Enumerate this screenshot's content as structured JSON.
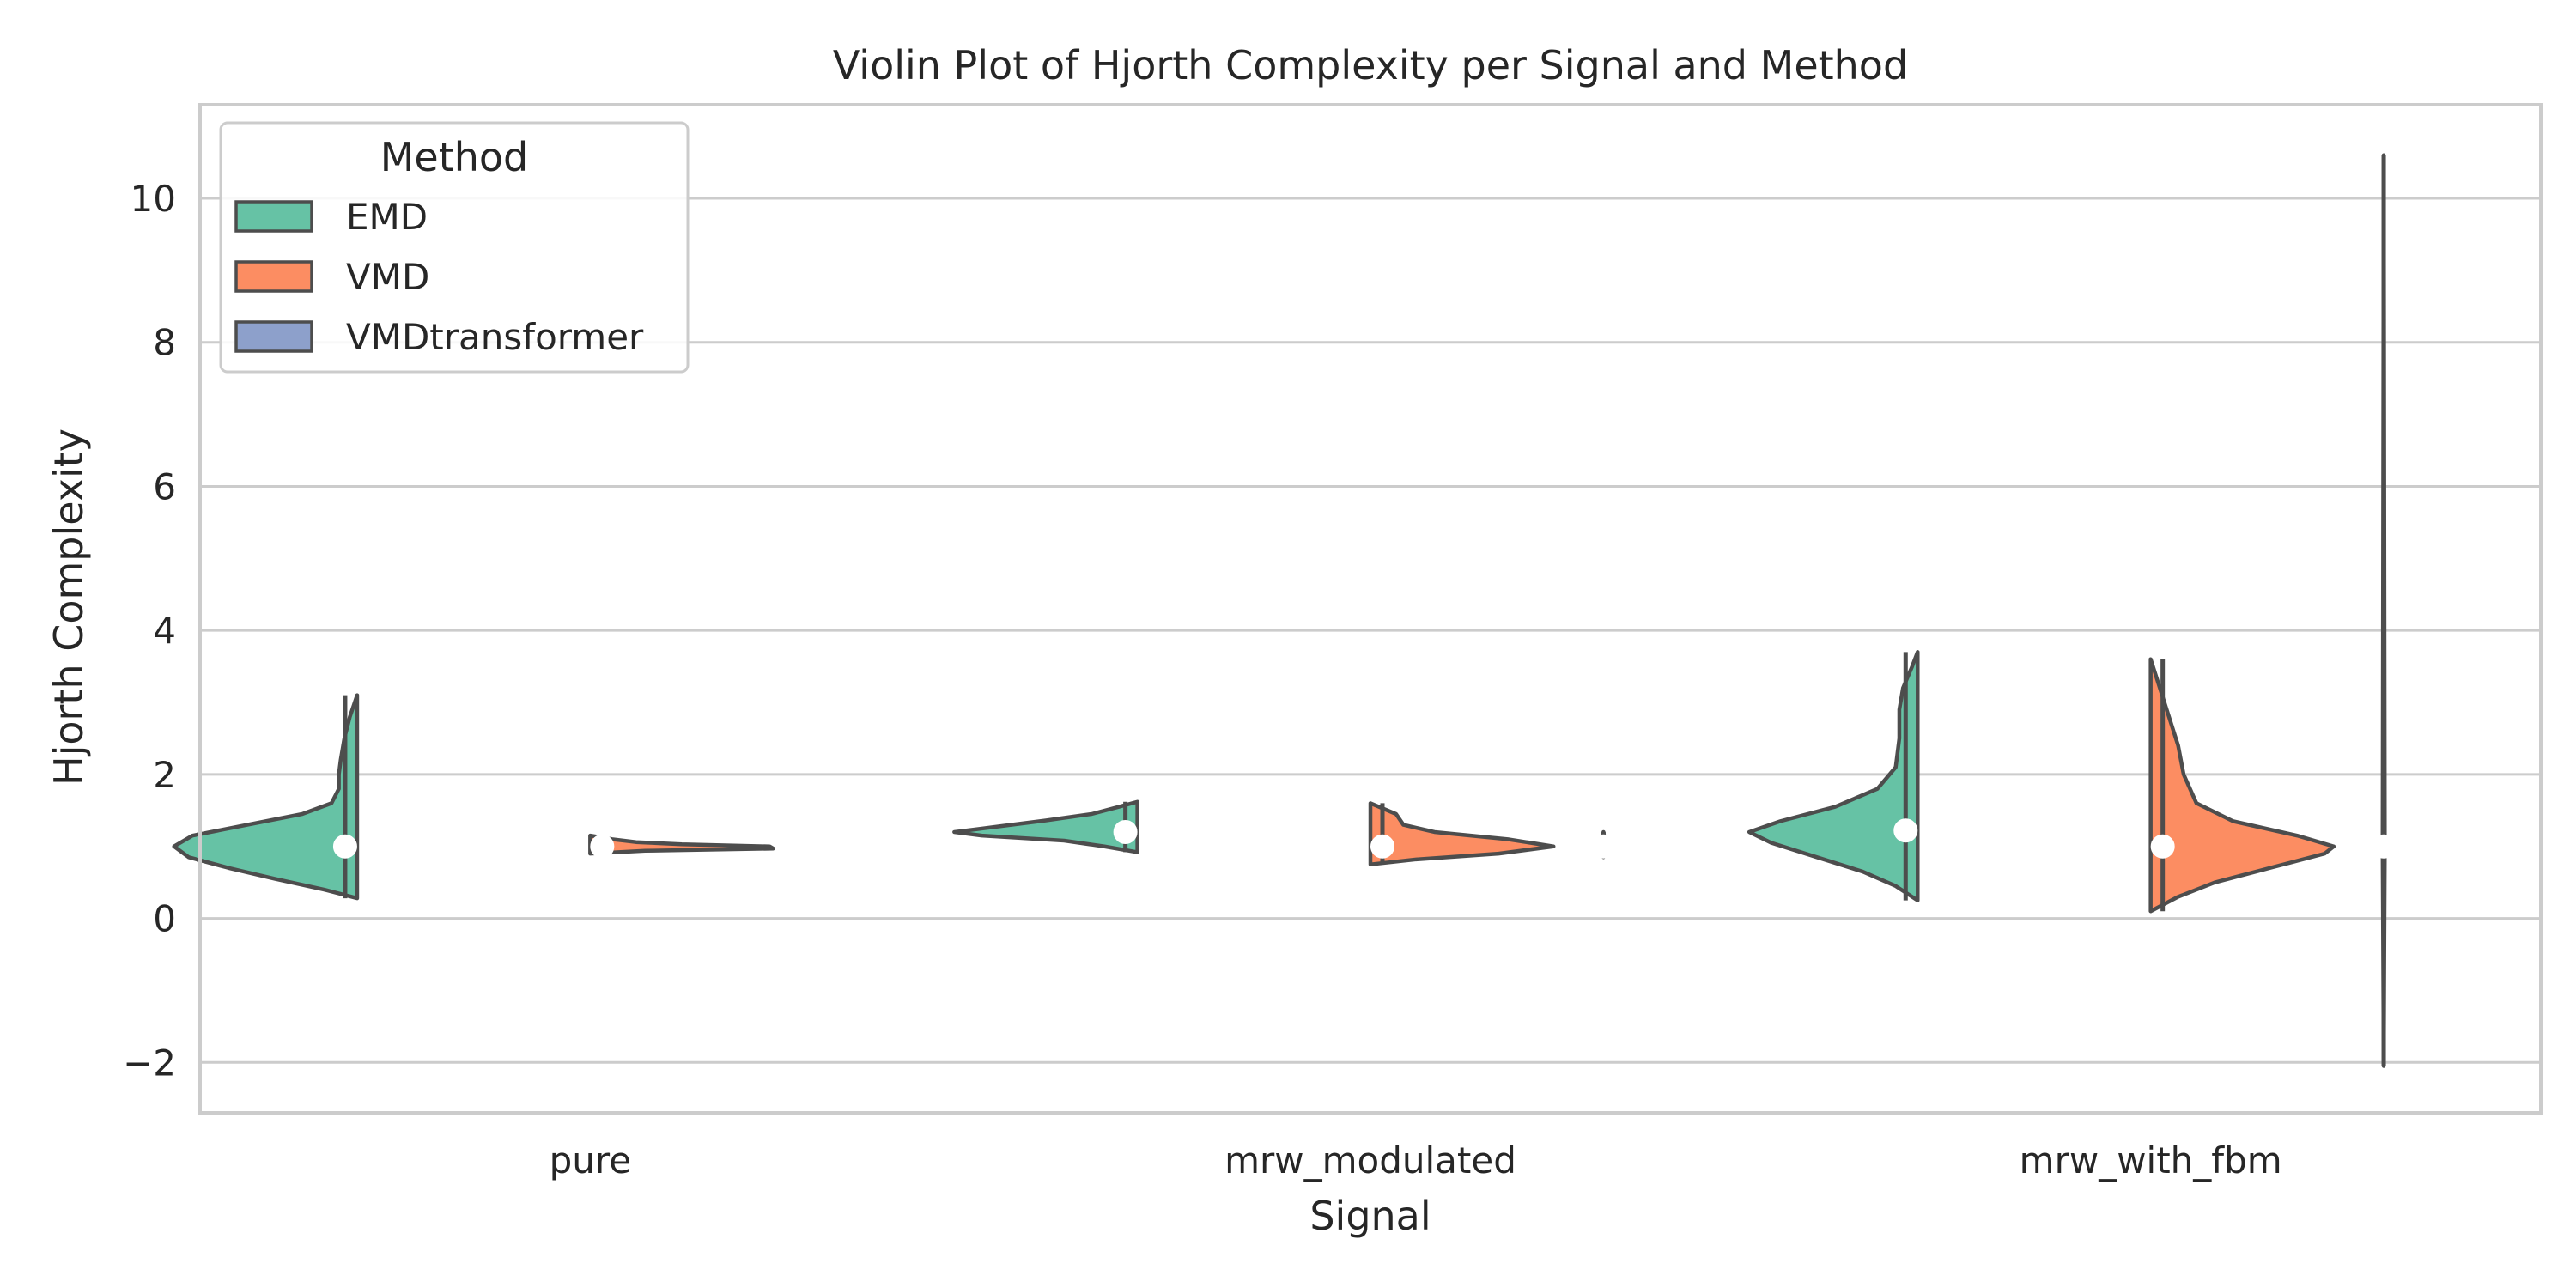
{
  "chart_data": {
    "type": "violin",
    "title": "Violin Plot of Hjorth Complexity per Signal and Method",
    "xlabel": "Signal",
    "ylabel": "Hjorth Complexity",
    "categories": [
      "pure",
      "mrw_modulated",
      "mrw_with_fbm"
    ],
    "ylim": [
      -2.7,
      11.3
    ],
    "yticks": [
      -2,
      0,
      2,
      4,
      6,
      8,
      10
    ],
    "grid": true,
    "legend": {
      "title": "Method",
      "placement": "top-left",
      "entries": [
        {
          "name": "EMD",
          "color": "#66c2a5"
        },
        {
          "name": "VMD",
          "color": "#fc8d62"
        },
        {
          "name": "VMDtransformer",
          "color": "#8da0cb"
        }
      ]
    },
    "series": [
      {
        "name": "EMD",
        "color": "#66c2a5",
        "side": "left",
        "violins": [
          {
            "category": "pure",
            "min": 0.28,
            "max": 3.1,
            "q1": 0.95,
            "q3": 1.08,
            "median": 1.0,
            "density": [
              [
                0.28,
                0.0
              ],
              [
                0.4,
                0.18
              ],
              [
                0.55,
                0.45
              ],
              [
                0.7,
                0.7
              ],
              [
                0.85,
                0.92
              ],
              [
                1.0,
                1.0
              ],
              [
                1.15,
                0.9
              ],
              [
                1.3,
                0.6
              ],
              [
                1.45,
                0.3
              ],
              [
                1.6,
                0.14
              ],
              [
                1.8,
                0.1
              ],
              [
                2.0,
                0.1
              ],
              [
                2.2,
                0.09
              ],
              [
                2.5,
                0.07
              ],
              [
                2.8,
                0.04
              ],
              [
                3.1,
                0.0
              ]
            ]
          },
          {
            "category": "mrw_modulated",
            "min": 0.92,
            "max": 1.62,
            "q1": 1.1,
            "q3": 1.3,
            "median": 1.2,
            "density": [
              [
                0.92,
                0.0
              ],
              [
                1.0,
                0.18
              ],
              [
                1.08,
                0.4
              ],
              [
                1.15,
                0.85
              ],
              [
                1.2,
                1.0
              ],
              [
                1.28,
                0.75
              ],
              [
                1.36,
                0.5
              ],
              [
                1.45,
                0.25
              ],
              [
                1.55,
                0.1
              ],
              [
                1.62,
                0.0
              ]
            ]
          },
          {
            "category": "mrw_with_fbm",
            "min": 0.25,
            "max": 3.7,
            "q1": 1.1,
            "q3": 1.35,
            "median": 1.22,
            "density": [
              [
                0.25,
                0.0
              ],
              [
                0.45,
                0.12
              ],
              [
                0.65,
                0.3
              ],
              [
                0.85,
                0.55
              ],
              [
                1.05,
                0.8
              ],
              [
                1.2,
                0.92
              ],
              [
                1.35,
                0.75
              ],
              [
                1.55,
                0.45
              ],
              [
                1.8,
                0.22
              ],
              [
                2.1,
                0.12
              ],
              [
                2.5,
                0.1
              ],
              [
                2.9,
                0.1
              ],
              [
                3.2,
                0.08
              ],
              [
                3.5,
                0.03
              ],
              [
                3.7,
                0.0
              ]
            ]
          }
        ]
      },
      {
        "name": "VMD",
        "color": "#fc8d62",
        "side": "right",
        "violins": [
          {
            "category": "pure",
            "min": 0.9,
            "max": 1.15,
            "q1": 0.95,
            "q3": 1.05,
            "median": 1.0,
            "density": [
              [
                0.9,
                0.0
              ],
              [
                0.94,
                0.3
              ],
              [
                0.97,
                1.0
              ],
              [
                1.0,
                0.98
              ],
              [
                1.03,
                0.5
              ],
              [
                1.06,
                0.25
              ],
              [
                1.1,
                0.12
              ],
              [
                1.15,
                0.0
              ]
            ]
          },
          {
            "category": "mrw_modulated",
            "min": 0.75,
            "max": 1.6,
            "q1": 0.95,
            "q3": 1.08,
            "median": 1.0,
            "density": [
              [
                0.75,
                0.0
              ],
              [
                0.82,
                0.25
              ],
              [
                0.9,
                0.7
              ],
              [
                1.0,
                1.0
              ],
              [
                1.1,
                0.75
              ],
              [
                1.2,
                0.35
              ],
              [
                1.3,
                0.18
              ],
              [
                1.45,
                0.14
              ],
              [
                1.6,
                0.0
              ]
            ]
          },
          {
            "category": "mrw_with_fbm",
            "min": 0.1,
            "max": 3.6,
            "q1": 0.93,
            "q3": 1.08,
            "median": 1.0,
            "density": [
              [
                0.1,
                0.0
              ],
              [
                0.3,
                0.15
              ],
              [
                0.5,
                0.35
              ],
              [
                0.7,
                0.65
              ],
              [
                0.9,
                0.95
              ],
              [
                1.0,
                1.0
              ],
              [
                1.15,
                0.8
              ],
              [
                1.35,
                0.45
              ],
              [
                1.6,
                0.25
              ],
              [
                2.0,
                0.18
              ],
              [
                2.4,
                0.15
              ],
              [
                2.8,
                0.1
              ],
              [
                3.2,
                0.05
              ],
              [
                3.6,
                0.0
              ]
            ]
          }
        ]
      },
      {
        "name": "VMDtransformer",
        "color": "#8da0cb",
        "side": "both",
        "violins": [
          {
            "category": "pure",
            "min": 0.98,
            "max": 1.02,
            "q1": 0.99,
            "q3": 1.01,
            "median": 1.0,
            "density": [
              [
                0.98,
                0.0
              ],
              [
                1.0,
                0.01
              ],
              [
                1.02,
                0.0
              ]
            ]
          },
          {
            "category": "mrw_modulated",
            "min": 0.85,
            "max": 1.2,
            "q1": 0.95,
            "q3": 1.05,
            "median": 1.0,
            "density": [
              [
                0.85,
                0.0
              ],
              [
                1.0,
                0.012
              ],
              [
                1.2,
                0.0
              ]
            ]
          },
          {
            "category": "mrw_with_fbm",
            "min": -2.05,
            "max": 10.6,
            "q1": 0.95,
            "q3": 1.05,
            "median": 1.0,
            "density": [
              [
                -2.05,
                0.0
              ],
              [
                1.0,
                0.006
              ],
              [
                10.6,
                0.0
              ]
            ]
          }
        ]
      }
    ]
  }
}
